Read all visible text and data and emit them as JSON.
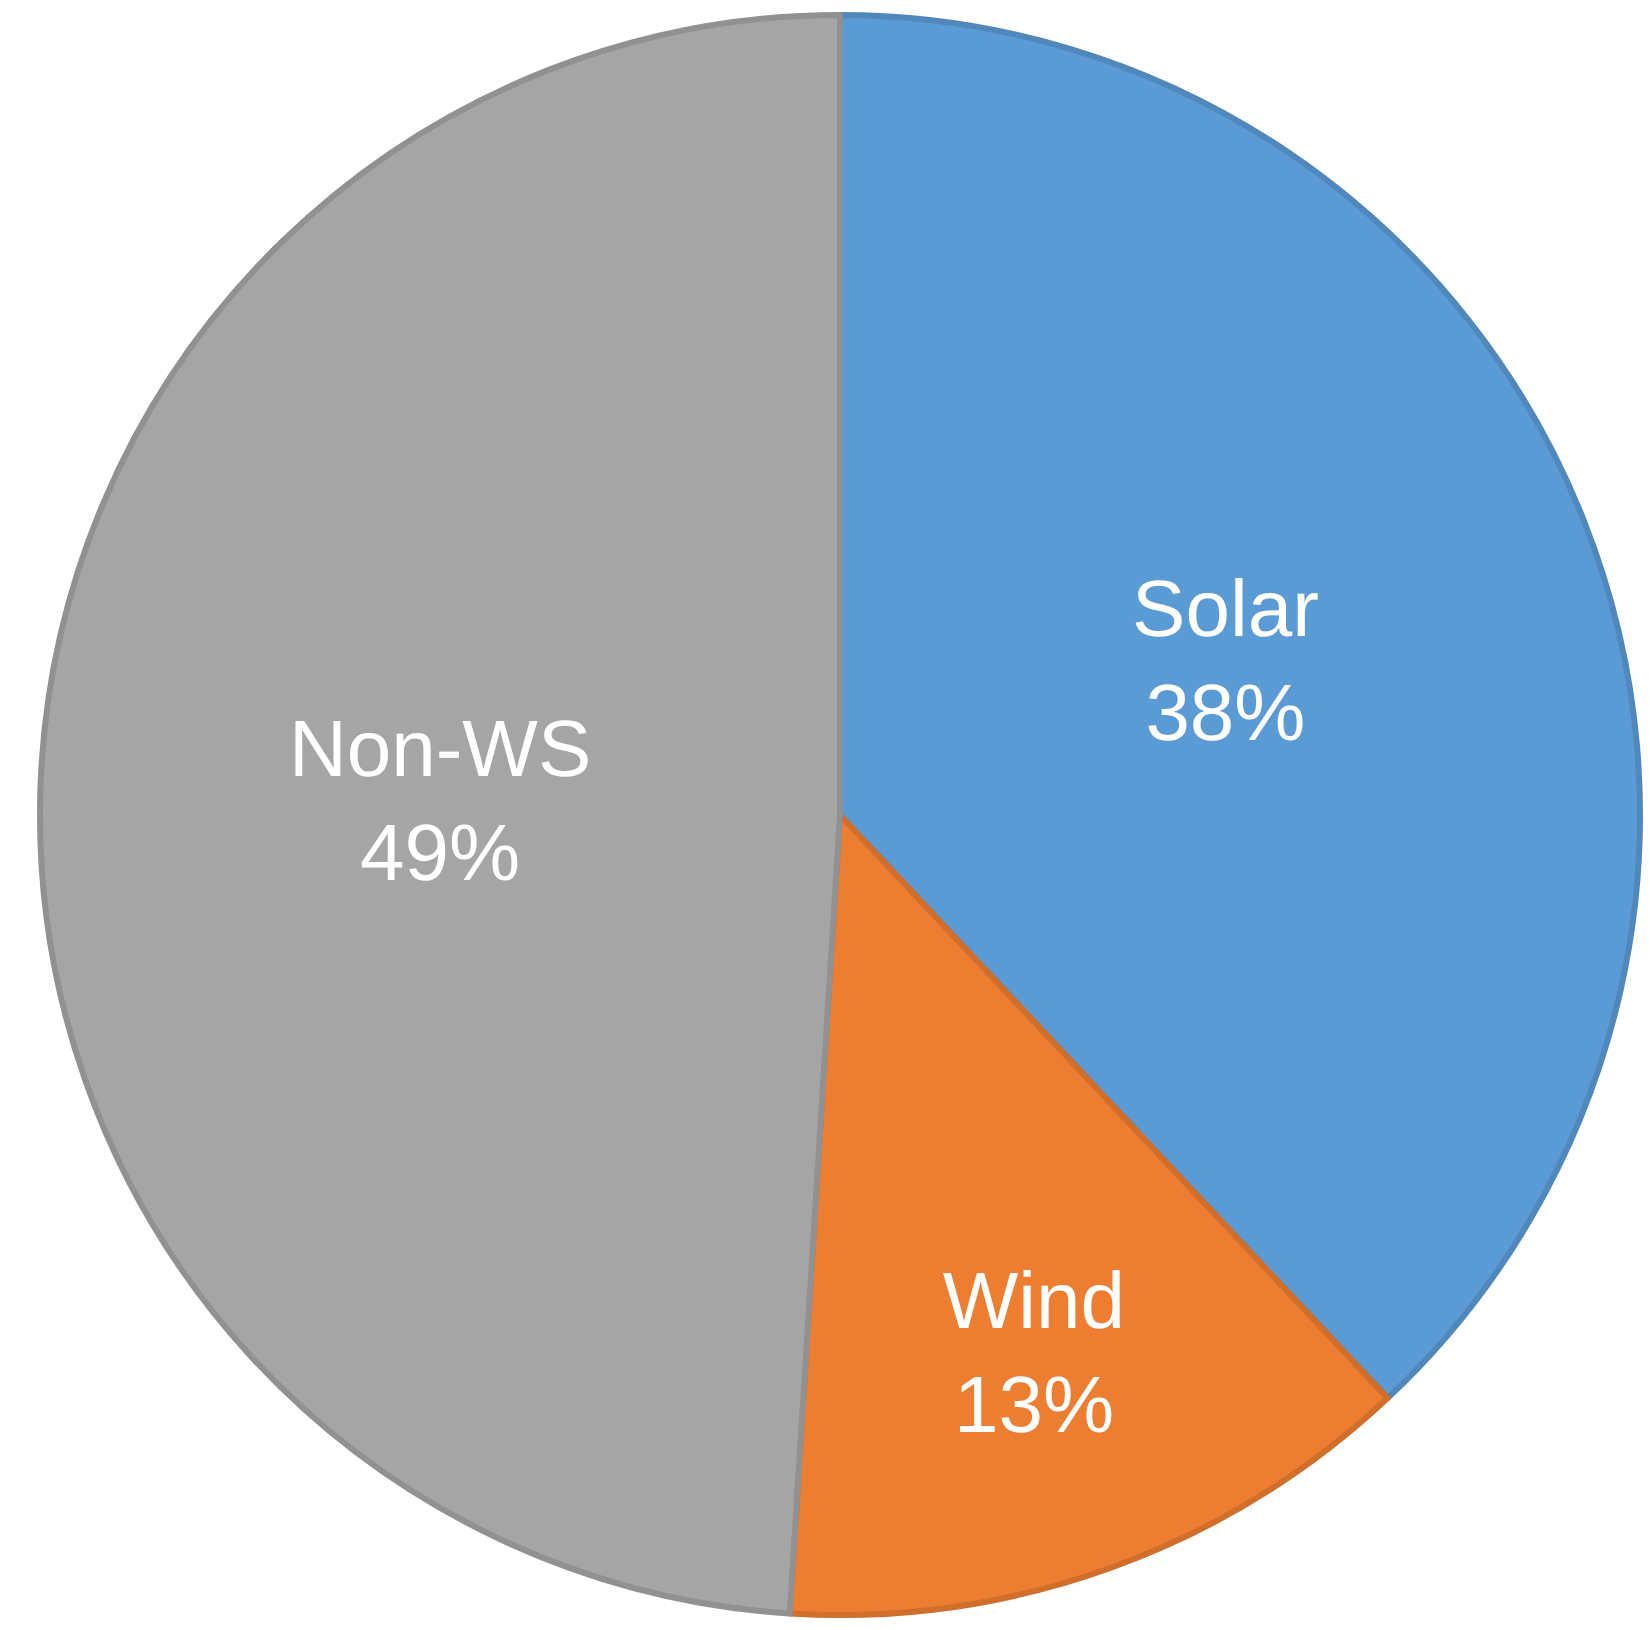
{
  "chart_data": {
    "type": "pie",
    "categories": [
      "Solar",
      "Wind",
      "Non-WS"
    ],
    "values": [
      38,
      13,
      49
    ],
    "value_labels": [
      "38%",
      "13%",
      "49%"
    ],
    "colors": [
      "#5b9bd5",
      "#ed7d31",
      "#a5a5a5"
    ],
    "legend": false
  }
}
